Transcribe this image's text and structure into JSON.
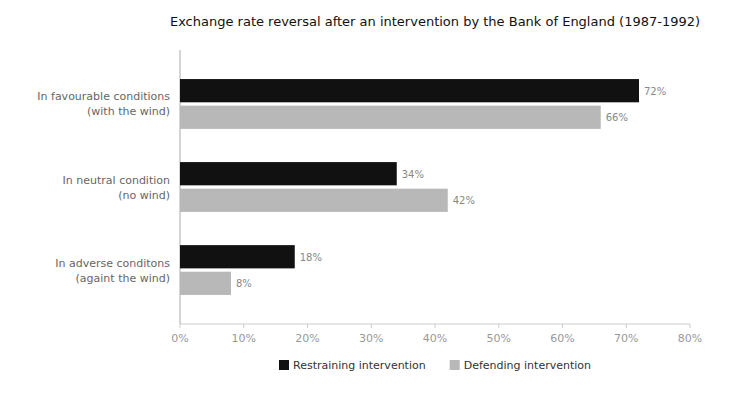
{
  "chart_data": {
    "type": "bar",
    "orientation": "horizontal",
    "title": "Exchange rate reversal after an intervention by the Bank of England (1987-1992)",
    "categories": [
      "In favourable conditions\n(with the wind)",
      "In neutral condition\n(no wind)",
      "In adverse conditons\n(againt the wind)"
    ],
    "series": [
      {
        "name": "Restraining intervention",
        "color": "#111111",
        "values": [
          72,
          34,
          18
        ],
        "value_labels": [
          "72%",
          "34%",
          "18%"
        ]
      },
      {
        "name": "Defending intervention",
        "color": "#b8b8b8",
        "values": [
          66,
          42,
          8
        ],
        "value_labels": [
          "66%",
          "42%",
          "8%"
        ]
      }
    ],
    "xlim": [
      0,
      80
    ],
    "xticks": [
      {
        "value": 0,
        "label": "0%"
      },
      {
        "value": 10,
        "label": "10%"
      },
      {
        "value": 20,
        "label": "20%"
      },
      {
        "value": 30,
        "label": "30%"
      },
      {
        "value": 40,
        "label": "40%"
      },
      {
        "value": 50,
        "label": "50%"
      },
      {
        "value": 60,
        "label": "60%"
      },
      {
        "value": 70,
        "label": "70%"
      },
      {
        "value": 80,
        "label": "80%"
      }
    ],
    "data_labels": true,
    "grid": false,
    "legend": "bottom"
  }
}
